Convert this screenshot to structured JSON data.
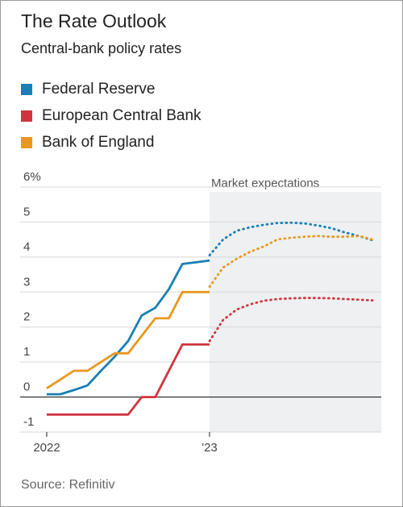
{
  "chart_data": {
    "type": "line",
    "title": "The Rate Outlook",
    "subtitle": "Central-bank policy rates",
    "annotation": "Market expectations",
    "source": "Source: Refinitiv",
    "categories": [
      "2022",
      null,
      null,
      null,
      null,
      null,
      null,
      null,
      null,
      null,
      null,
      null,
      "'23",
      null,
      null,
      null,
      null,
      null,
      null,
      null,
      null,
      null,
      null,
      null,
      null
    ],
    "ylim": [
      -1,
      6
    ],
    "yticks": [
      -1,
      0,
      1,
      2,
      3,
      4,
      5,
      {
        "value": 6,
        "label": "6%"
      }
    ],
    "grid": true,
    "series": [
      {
        "name": "Federal Reserve",
        "color": "#1a7fb5",
        "values": [
          0.08,
          0.08,
          0.2,
          0.33,
          0.75,
          1.15,
          1.6,
          2.33,
          2.55,
          3.08,
          3.8,
          3.85,
          3.9,
          null,
          null,
          null,
          null,
          null,
          null,
          null,
          null,
          null,
          null,
          null,
          null
        ],
        "expected": [
          null,
          null,
          null,
          null,
          null,
          null,
          null,
          null,
          null,
          null,
          null,
          null,
          4.05,
          4.5,
          4.75,
          4.85,
          4.92,
          4.97,
          4.98,
          4.96,
          4.9,
          4.82,
          4.7,
          4.6,
          4.48
        ]
      },
      {
        "name": "European Central Bank",
        "color": "#d0353f",
        "values": [
          -0.5,
          -0.5,
          -0.5,
          -0.5,
          -0.5,
          -0.5,
          -0.5,
          0,
          0,
          0.75,
          1.5,
          1.5,
          1.5,
          null,
          null,
          null,
          null,
          null,
          null,
          null,
          null,
          null,
          null,
          null,
          null
        ],
        "expected": [
          null,
          null,
          null,
          null,
          null,
          null,
          null,
          null,
          null,
          null,
          null,
          null,
          1.6,
          2.2,
          2.5,
          2.65,
          2.75,
          2.8,
          2.82,
          2.83,
          2.83,
          2.82,
          2.8,
          2.78,
          2.76
        ]
      },
      {
        "name": "Bank of England",
        "color": "#e8981e",
        "values": [
          0.25,
          0.5,
          0.75,
          0.75,
          1.0,
          1.25,
          1.25,
          1.75,
          2.25,
          2.25,
          3.0,
          3.0,
          3.0,
          null,
          null,
          null,
          null,
          null,
          null,
          null,
          null,
          null,
          null,
          null,
          null
        ],
        "expected": [
          null,
          null,
          null,
          null,
          null,
          null,
          null,
          null,
          null,
          null,
          null,
          null,
          3.15,
          3.7,
          3.95,
          4.15,
          4.3,
          4.5,
          4.55,
          4.58,
          4.6,
          4.58,
          4.58,
          4.6,
          4.5
        ]
      }
    ]
  }
}
